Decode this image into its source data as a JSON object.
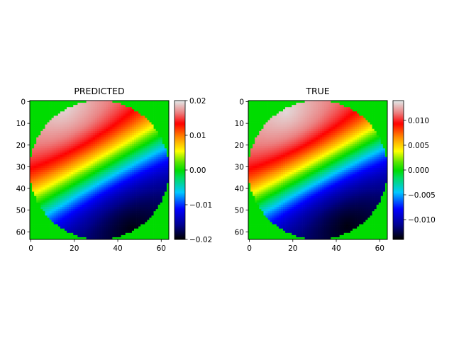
{
  "chart_data": [
    {
      "type": "heatmap",
      "title": "PREDICTED",
      "xlabel": "",
      "ylabel": "",
      "grid": false,
      "image_size": [
        64,
        64
      ],
      "xticks": [
        "0",
        "20",
        "40",
        "60"
      ],
      "yticks": [
        "0",
        "10",
        "20",
        "30",
        "40",
        "50",
        "60"
      ],
      "mask": "circular aperture, outside region at 0.0 (green)",
      "field": {
        "description": "bipolar field: positive lobe top-left, negative lobe bottom-right, zero line along a diagonal through center",
        "max": 0.02,
        "min": -0.02,
        "peak_positive_at": [
          15,
          3
        ],
        "peak_negative_at": [
          46,
          58
        ]
      },
      "colormap": "nipy_spectral-like (black-blue-cyan-green-yellow-red-white)",
      "colorbar": {
        "vmin": -0.02,
        "vmax": 0.02,
        "ticks": [
          "−0.02",
          "−0.01",
          "0.00",
          "0.01",
          "0.02"
        ],
        "tick_values": [
          -0.02,
          -0.01,
          0.0,
          0.01,
          0.02
        ]
      }
    },
    {
      "type": "heatmap",
      "title": "TRUE",
      "xlabel": "",
      "ylabel": "",
      "grid": false,
      "image_size": [
        64,
        64
      ],
      "xticks": [
        "0",
        "20",
        "40",
        "60"
      ],
      "yticks": [
        "0",
        "10",
        "20",
        "30",
        "40",
        "50",
        "60"
      ],
      "mask": "circular aperture, outside region at 0.0 (green)",
      "field": {
        "description": "bipolar field: positive lobe top-left, negative lobe bottom-right, zero line along a diagonal through center",
        "max": 0.014,
        "min": -0.014,
        "peak_positive_at": [
          17,
          5
        ],
        "peak_negative_at": [
          45,
          57
        ]
      },
      "colormap": "nipy_spectral-like (black-blue-cyan-green-yellow-red-white)",
      "colorbar": {
        "vmin": -0.014,
        "vmax": 0.014,
        "ticks": [
          "−0.010",
          "−0.005",
          "0.000",
          "0.005",
          "0.010"
        ],
        "tick_values": [
          -0.01,
          -0.005,
          0.0,
          0.005,
          0.01
        ]
      }
    }
  ]
}
